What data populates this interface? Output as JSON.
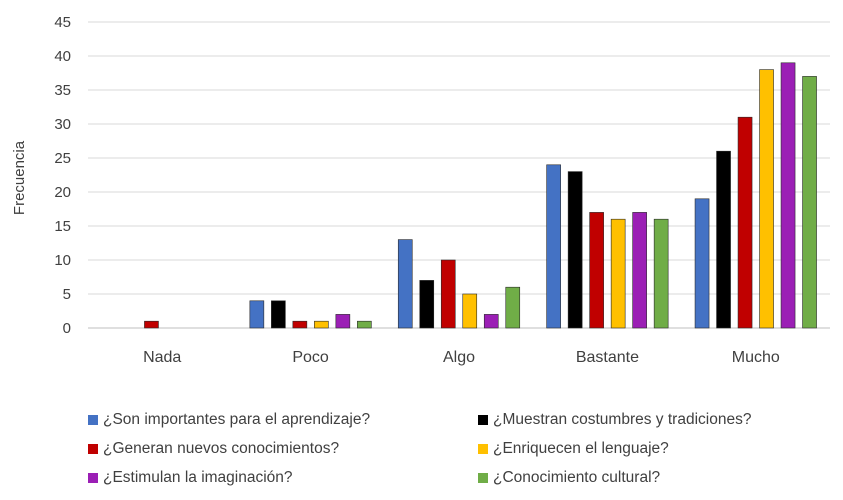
{
  "chart_data": {
    "type": "bar",
    "title": "",
    "xlabel": "",
    "ylabel": "Frecuencia",
    "ylim": [
      0,
      45
    ],
    "yticks": [
      0,
      5,
      10,
      15,
      20,
      25,
      30,
      35,
      40,
      45
    ],
    "grid": true,
    "legend_position": "bottom",
    "categories": [
      "Nada",
      "Poco",
      "Algo",
      "Bastante",
      "Mucho"
    ],
    "series": [
      {
        "name": "¿Son importantes para el aprendizaje?",
        "color": "#4472c4",
        "values": [
          0,
          4,
          13,
          24,
          19
        ]
      },
      {
        "name": "¿Muestran costumbres y tradiciones?",
        "color": "#000000",
        "values": [
          0,
          4,
          7,
          23,
          26
        ]
      },
      {
        "name": "¿Generan nuevos conocimientos?",
        "color": "#c00000",
        "values": [
          1,
          1,
          10,
          17,
          31
        ]
      },
      {
        "name": "¿Enriquecen el lenguaje?",
        "color": "#ffc000",
        "values": [
          0,
          1,
          5,
          16,
          38
        ]
      },
      {
        "name": "¿Estimulan la imaginación?",
        "color": "#9b1fb5",
        "values": [
          0,
          2,
          2,
          17,
          39
        ]
      },
      {
        "name": "¿Conocimiento cultural?",
        "color": "#70ad47",
        "values": [
          0,
          1,
          6,
          16,
          37
        ]
      }
    ]
  }
}
